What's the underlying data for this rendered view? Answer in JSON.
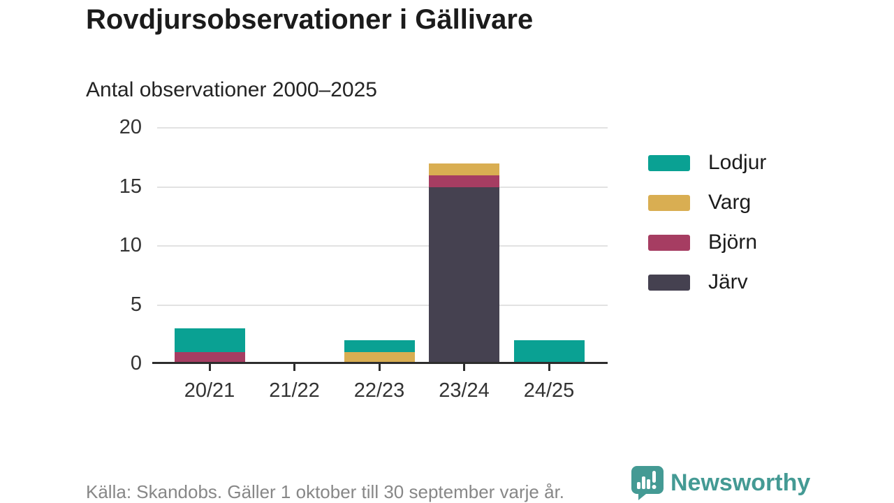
{
  "header": {
    "title": "Rovdjursobservationer i Gällivare",
    "subtitle": "Antal observationer 2000–2025"
  },
  "chart_data": {
    "type": "bar",
    "stacked": true,
    "title": "Rovdjursobservationer i Gällivare",
    "subtitle": "Antal observationer 2000–2025",
    "categories": [
      "20/21",
      "21/22",
      "22/23",
      "23/24",
      "24/25"
    ],
    "series": [
      {
        "name": "Järv",
        "color": "#454150",
        "values": [
          0,
          0,
          0,
          15,
          0
        ]
      },
      {
        "name": "Björn",
        "color": "#a63d62",
        "values": [
          1,
          0,
          0,
          1,
          0
        ]
      },
      {
        "name": "Varg",
        "color": "#d9ae52",
        "values": [
          0,
          0,
          1,
          1,
          0
        ]
      },
      {
        "name": "Lodjur",
        "color": "#0aa193",
        "values": [
          2,
          0,
          1,
          0,
          2
        ]
      }
    ],
    "totals": [
      3,
      0,
      2,
      17,
      2
    ],
    "stack_order_bottom_to_top": [
      "Järv",
      "Björn",
      "Varg",
      "Lodjur"
    ],
    "legend": [
      {
        "label": "Lodjur",
        "color": "#0aa193"
      },
      {
        "label": "Varg",
        "color": "#d9ae52"
      },
      {
        "label": "Björn",
        "color": "#a63d62"
      },
      {
        "label": "Järv",
        "color": "#454150"
      }
    ],
    "legend_position": "right",
    "yticks": [
      0,
      5,
      10,
      15,
      20
    ],
    "ylim": [
      0,
      20
    ],
    "xlabel": "",
    "ylabel": "",
    "grid": true
  },
  "footer": {
    "source": "Källa: Skandobs. Gäller 1 oktober till 30 september varje år.",
    "brand": "Newsworthy"
  },
  "colors": {
    "axis": "#2d2d2d",
    "gridline": "#e2e2e2",
    "text": "#1b1b1b",
    "muted_text": "#878787",
    "brand_teal": "#449a94"
  }
}
